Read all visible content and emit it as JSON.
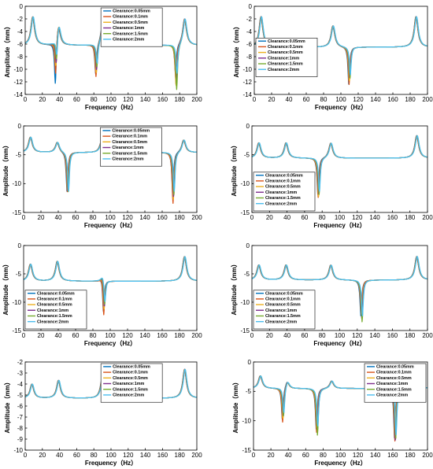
{
  "colors": [
    "#0072BD",
    "#D95319",
    "#EDB120",
    "#7E2F8E",
    "#77AC30",
    "#4DBEEE"
  ],
  "chart_data": [
    {
      "type": "line",
      "id": "p1",
      "xlim": [
        0,
        200
      ],
      "ylim": [
        -14,
        0
      ],
      "xticks": [
        "0",
        "20",
        "40",
        "60",
        "80",
        "100",
        "120",
        "140",
        "160",
        "180",
        "200"
      ],
      "yticks": [
        "0",
        "-2",
        "-4",
        "-6",
        "-8",
        "-10",
        "-12",
        "-14"
      ],
      "xlabel": "Frequency（Hz）",
      "ylabel": "Amplitude（mm）",
      "legend": [
        "Clearance:0.05mm",
        "Clearance:0.1mm",
        "Clearance:0.5mm",
        "Clearance:1mm",
        "Clearance:1.5mm",
        "Clearance:2mm"
      ],
      "legend_position": "top-center",
      "base": -6.2,
      "features": [
        {
          "type": "peak",
          "x": 9,
          "top": -0.9
        },
        {
          "type": "anti",
          "x": 36,
          "deep": [
            -13.5,
            -12,
            -11,
            -10.5,
            -10,
            -9.5
          ]
        },
        {
          "type": "peak",
          "x": 39,
          "top": -2.2
        },
        {
          "type": "anti",
          "x": 83,
          "deep": [
            -11,
            -11.5,
            -11,
            -10.5,
            -10,
            -9.5
          ]
        },
        {
          "type": "peak",
          "x": 90,
          "top": -2.8
        },
        {
          "type": "anti",
          "x": 176,
          "deep": [
            -11,
            -12,
            -13,
            -12.5,
            -13.5,
            -11
          ]
        },
        {
          "type": "peak",
          "x": 186,
          "top": -1.2
        }
      ]
    },
    {
      "type": "line",
      "id": "p2",
      "xlim": [
        0,
        200
      ],
      "ylim": [
        -14,
        0
      ],
      "xticks": [
        "0",
        "20",
        "40",
        "60",
        "80",
        "100",
        "120",
        "140",
        "160",
        "180",
        "200"
      ],
      "yticks": [
        "0",
        "-2",
        "-4",
        "-6",
        "-8",
        "-10",
        "-12",
        "-14"
      ],
      "xlabel": "Frequency（Hz）",
      "ylabel": "Amplitude（mm）",
      "legend": [
        "Clearance:0.05mm",
        "Clearance:0.1mm",
        "Clearance:0.5mm",
        "Clearance:1mm",
        "Clearance:1.5mm",
        "Clearance:2mm"
      ],
      "legend_position": "middle-left",
      "base": -6.5,
      "features": [
        {
          "type": "peak",
          "x": 8,
          "top": -0.8
        },
        {
          "type": "peak",
          "x": 91,
          "top": -2.5
        },
        {
          "type": "anti",
          "x": 110,
          "deep": [
            -12.5,
            -12.5,
            -12,
            -11.5,
            -11.5,
            -11
          ]
        },
        {
          "type": "peak",
          "x": 187,
          "top": -0.8
        }
      ]
    },
    {
      "type": "line",
      "id": "p3",
      "xlim": [
        0,
        200
      ],
      "ylim": [
        -15,
        0
      ],
      "xticks": [
        "0",
        "20",
        "40",
        "60",
        "80",
        "100",
        "120",
        "140",
        "160",
        "180",
        "200"
      ],
      "yticks": [
        "0",
        "-5",
        "-10",
        "-15"
      ],
      "xlabel": "Frequency（Hz）",
      "ylabel": "Amplitude（mm）",
      "legend": [
        "Clearance:0.05mm",
        "Clearance:0.1mm",
        "Clearance:0.5mm",
        "Clearance:1mm",
        "Clearance:1.5mm",
        "Clearance:2mm"
      ],
      "legend_position": "top-center",
      "base": -4.6,
      "features": [
        {
          "type": "peak",
          "x": 8,
          "top": -1.5
        },
        {
          "type": "peak",
          "x": 39,
          "top": -2.5
        },
        {
          "type": "anti",
          "x": 51,
          "deep": [
            -11.5,
            -11.5,
            -11.5,
            -11.5,
            -11.5,
            -11.5
          ]
        },
        {
          "type": "peak",
          "x": 90,
          "top": -2.5
        },
        {
          "type": "anti",
          "x": 173,
          "deep": [
            -12,
            -13.5,
            -13,
            -12.5,
            -12,
            -11.5
          ]
        },
        {
          "type": "peak",
          "x": 185,
          "top": -2
        }
      ]
    },
    {
      "type": "line",
      "id": "p4",
      "xlim": [
        0,
        200
      ],
      "ylim": [
        -15,
        0
      ],
      "xticks": [
        "0",
        "20",
        "40",
        "60",
        "80",
        "100",
        "120",
        "140",
        "160",
        "180",
        "200"
      ],
      "yticks": [
        "0",
        "-5",
        "-10",
        "-15"
      ],
      "xlabel": "Frequency（Hz）",
      "ylabel": "Amplitude（mm）",
      "legend": [
        "Clearance:0.05mm",
        "Clearance:0.1mm",
        "Clearance:0.5mm",
        "Clearance:1mm",
        "Clearance:1.5mm",
        "Clearance:2mm"
      ],
      "legend_position": "bottom-left",
      "base": -5.6,
      "features": [
        {
          "type": "peak",
          "x": 8,
          "top": -2.5
        },
        {
          "type": "peak",
          "x": 39,
          "top": -2.5
        },
        {
          "type": "anti",
          "x": 76,
          "deep": [
            -12,
            -12.5,
            -12.5,
            -12,
            -12,
            -11.5
          ]
        },
        {
          "type": "peak",
          "x": 90,
          "top": -2.5
        },
        {
          "type": "peak",
          "x": 188,
          "top": -1
        }
      ]
    },
    {
      "type": "line",
      "id": "p5",
      "xlim": [
        0,
        200
      ],
      "ylim": [
        -15,
        0
      ],
      "xticks": [
        "0",
        "20",
        "40",
        "60",
        "80",
        "100",
        "120",
        "140",
        "160",
        "180",
        "200"
      ],
      "yticks": [
        "0",
        "-5",
        "-10",
        "-15"
      ],
      "xlabel": "Frequency（Hz）",
      "ylabel": "Amplitude（mm）",
      "legend": [
        "Clearance:0.05mm",
        "Clearance:0.1mm",
        "Clearance:0.5mm",
        "Clearance:1mm",
        "Clearance:1.5mm",
        "Clearance:2mm"
      ],
      "legend_position": "bottom-left",
      "base": -6.3,
      "features": [
        {
          "type": "peak",
          "x": 8,
          "top": -2.8
        },
        {
          "type": "peak",
          "x": 39,
          "top": -2.2
        },
        {
          "type": "peak",
          "x": 91,
          "top": -5
        },
        {
          "type": "anti",
          "x": 93,
          "deep": [
            -12.5,
            -13,
            -12,
            -11.5,
            -11,
            -10.5
          ]
        },
        {
          "type": "peak",
          "x": 186,
          "top": -1.2
        }
      ]
    },
    {
      "type": "line",
      "id": "p6",
      "xlim": [
        0,
        200
      ],
      "ylim": [
        -15,
        0
      ],
      "xticks": [
        "0",
        "20",
        "40",
        "60",
        "80",
        "100",
        "120",
        "140",
        "160",
        "180",
        "200"
      ],
      "yticks": [
        "0",
        "-5",
        "-10",
        "-15"
      ],
      "xlabel": "Frequency（Hz）",
      "ylabel": "Amplitude（mm）",
      "legend": [
        "Clearance:0.05mm",
        "Clearance:0.1mm",
        "Clearance:0.5mm",
        "Clearance:1mm",
        "Clearance:1.5mm",
        "Clearance:2mm"
      ],
      "legend_position": "bottom-left",
      "base": -6.1,
      "features": [
        {
          "type": "peak",
          "x": 8,
          "top": -3
        },
        {
          "type": "peak",
          "x": 39,
          "top": -3
        },
        {
          "type": "peak",
          "x": 90,
          "top": -3
        },
        {
          "type": "anti",
          "x": 125,
          "deep": [
            -12.5,
            -12,
            -12.5,
            -13,
            -13.5,
            -12.5
          ]
        },
        {
          "type": "peak",
          "x": 188,
          "top": -1.2
        }
      ]
    },
    {
      "type": "line",
      "id": "p7",
      "xlim": [
        0,
        200
      ],
      "ylim": [
        -10,
        -2
      ],
      "xticks": [
        "0",
        "20",
        "40",
        "60",
        "80",
        "100",
        "120",
        "140",
        "160",
        "180",
        "200"
      ],
      "yticks": [
        "-2",
        "-3",
        "-4",
        "-5",
        "-6",
        "-7",
        "-8",
        "-9",
        "-10"
      ],
      "xlabel": "Frequency（Hz）",
      "ylabel": "Amplitude（mm）",
      "legend": [
        "Clearance:0.05mm",
        "Clearance:0.1mm",
        "Clearance:0.5mm",
        "Clearance:1mm",
        "Clearance:1.5mm",
        "Clearance:2mm"
      ],
      "legend_position": "top-center",
      "base": -5.3,
      "features": [
        {
          "type": "peak",
          "x": 8,
          "top": -3.8
        },
        {
          "type": "peak",
          "x": 39,
          "top": -3.4
        },
        {
          "type": "peak",
          "x": 90,
          "top": -3.2
        },
        {
          "type": "peak",
          "x": 186,
          "top": -2.2
        }
      ]
    },
    {
      "type": "line",
      "id": "p8",
      "xlim": [
        0,
        200
      ],
      "ylim": [
        -15,
        0
      ],
      "xticks": [
        "0",
        "20",
        "40",
        "60",
        "80",
        "100",
        "120",
        "140",
        "160",
        "180",
        "200"
      ],
      "yticks": [
        "0",
        "-5",
        "-10",
        "-15"
      ],
      "xlabel": "Frequency（Hz）",
      "ylabel": "Amplitude（mm）",
      "legend": [
        "Clearance:0.05mm",
        "Clearance:0.1mm",
        "Clearance:0.5mm",
        "Clearance:1mm",
        "Clearance:1.5mm",
        "Clearance:2mm"
      ],
      "legend_position": "top-right",
      "base": -4.5,
      "features": [
        {
          "type": "peak",
          "x": 8,
          "top": -2
        },
        {
          "type": "anti",
          "x": 34,
          "deep": [
            -10,
            -10.5,
            -10,
            -9.5,
            -9.5,
            -9
          ]
        },
        {
          "type": "peak",
          "x": 39,
          "top": -3
        },
        {
          "type": "anti",
          "x": 73,
          "deep": [
            -11.5,
            -12,
            -11.5,
            -11.5,
            -12.5,
            -11
          ]
        },
        {
          "type": "peak",
          "x": 90,
          "top": -3
        },
        {
          "type": "anti",
          "x": 163,
          "deep": [
            -13,
            -13.5,
            -13,
            -13.5,
            -13,
            -12.5
          ]
        },
        {
          "type": "peak",
          "x": 187,
          "top": -1.5
        }
      ]
    }
  ]
}
